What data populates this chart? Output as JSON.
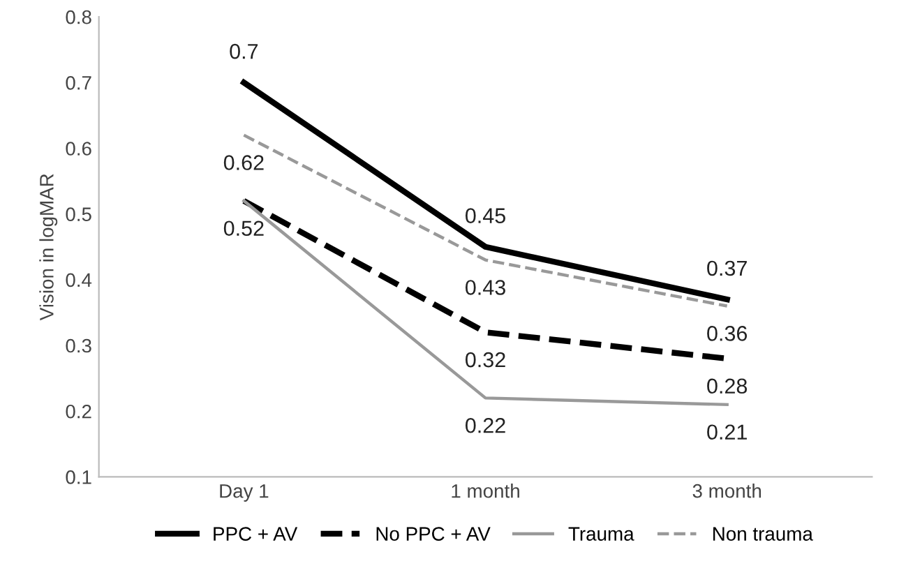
{
  "chart_data": {
    "type": "line",
    "ylabel": "Vision in logMAR",
    "categories": [
      "Day 1",
      "1 month",
      "3 month"
    ],
    "ylim": [
      0.1,
      0.8
    ],
    "yticks": [
      0.1,
      0.2,
      0.3,
      0.4,
      0.5,
      0.6,
      0.7,
      0.8
    ],
    "grid": false,
    "legend": "bottom",
    "marker": "none",
    "series": [
      {
        "name": "PPC + AV",
        "color": "#000000",
        "line_style": "solid",
        "values": [
          0.7,
          0.45,
          0.37
        ],
        "value_labels": [
          "0.7",
          "0.45",
          "0.37"
        ]
      },
      {
        "name": "No PPC + AV",
        "color": "#000000",
        "line_style": "dashed",
        "values": [
          0.52,
          0.32,
          0.28
        ],
        "value_labels": [
          null,
          "0.32",
          "0.28"
        ]
      },
      {
        "name": "Trauma",
        "color": "#999999",
        "line_style": "solid",
        "values": [
          0.52,
          0.22,
          0.21
        ],
        "value_labels": [
          "0.52",
          "0.22",
          "0.21"
        ]
      },
      {
        "name": "Non trauma",
        "color": "#999999",
        "line_style": "dashed",
        "values": [
          0.62,
          0.43,
          0.36
        ],
        "value_labels": [
          "0.62",
          "0.43",
          "0.36"
        ]
      }
    ]
  }
}
